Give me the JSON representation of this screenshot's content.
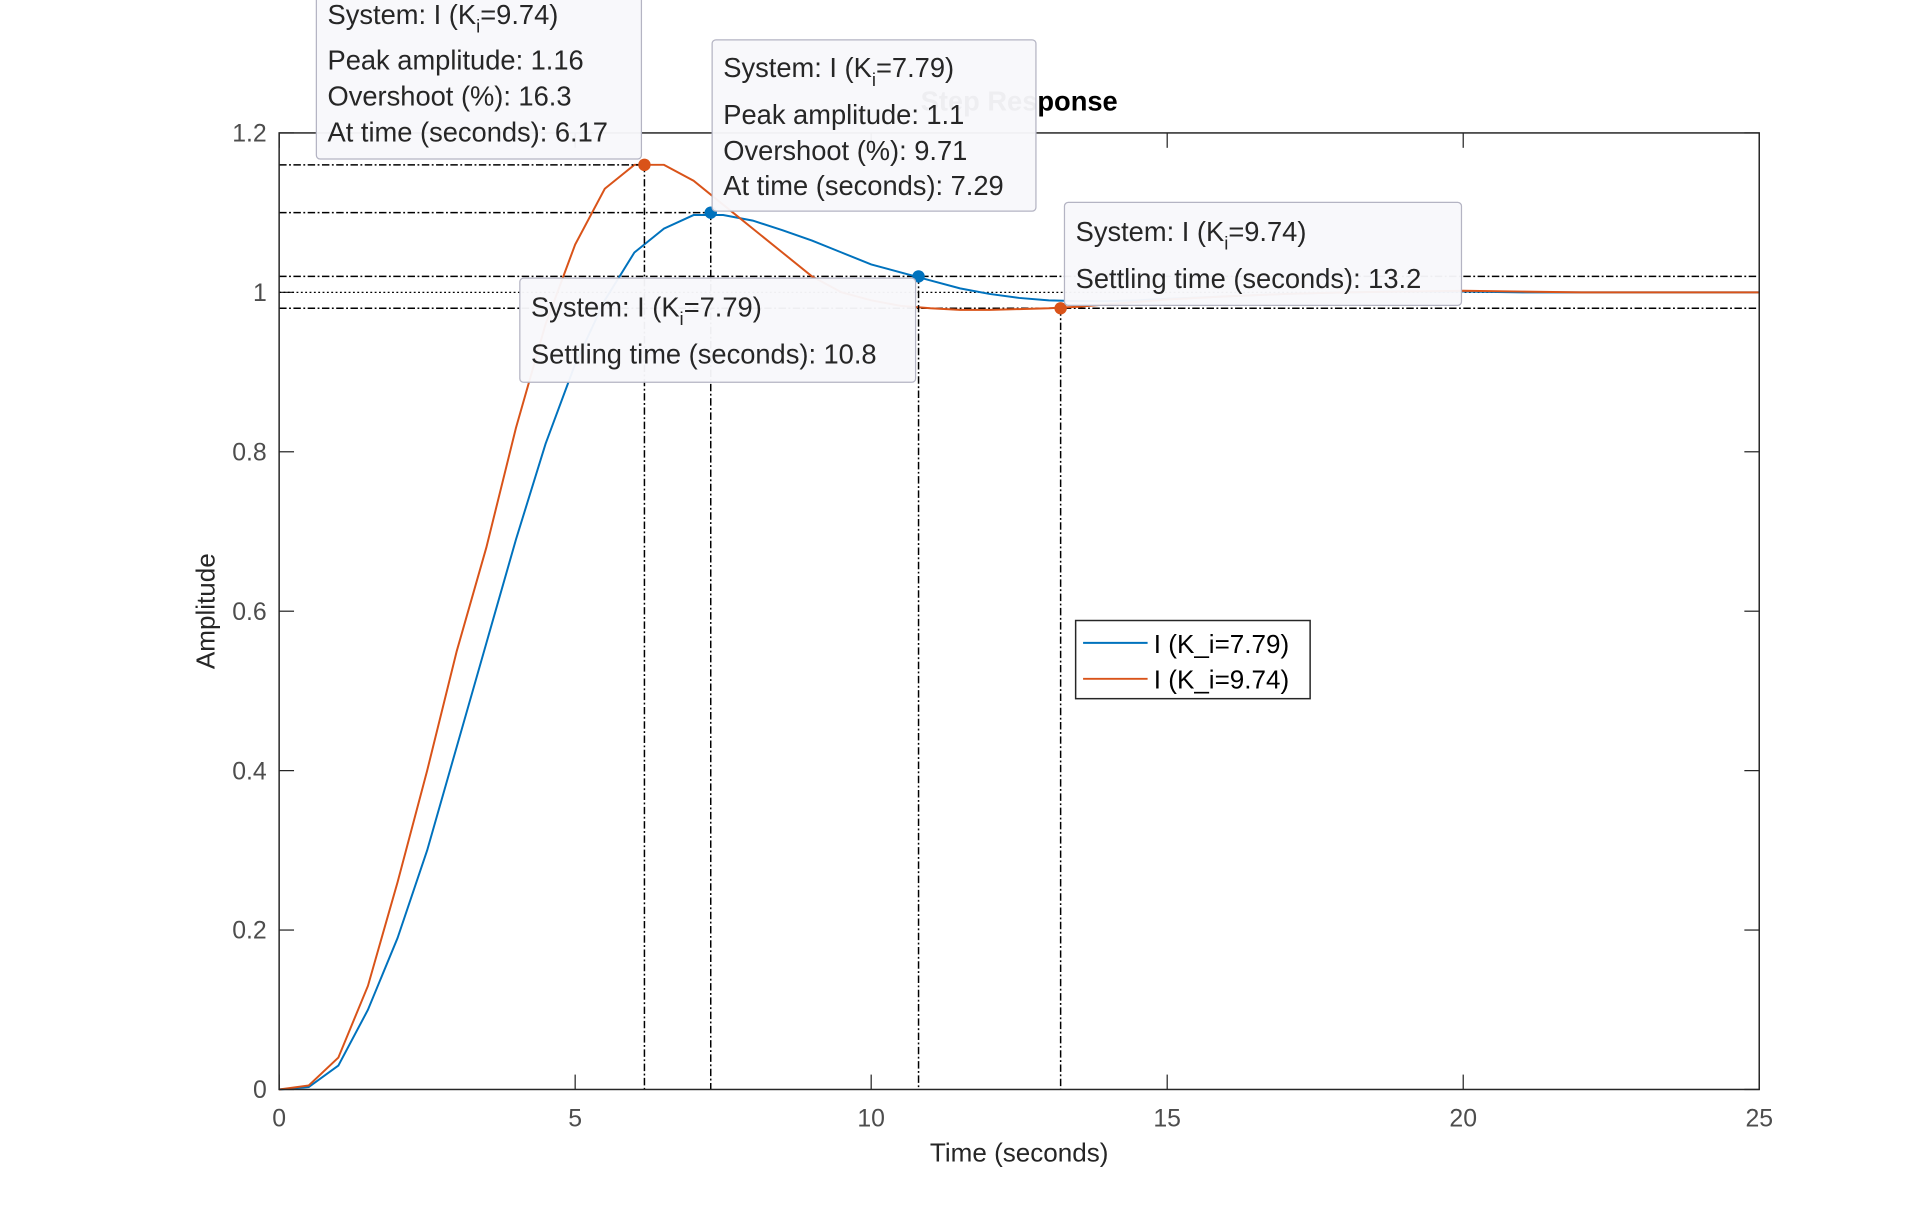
{
  "chart_data": {
    "type": "line",
    "title": "Step Response",
    "xlabel": "Time (seconds)",
    "ylabel": "Amplitude",
    "xlim": [
      0,
      25
    ],
    "ylim": [
      0,
      1.2
    ],
    "xticks": [
      0,
      5,
      10,
      15,
      20,
      25
    ],
    "yticks": [
      0,
      0.2,
      0.4,
      0.6,
      0.8,
      1,
      1.2
    ],
    "grid": false,
    "x": [
      0,
      0.5,
      1,
      1.5,
      2,
      2.5,
      3,
      3.5,
      4,
      4.5,
      5,
      5.5,
      6,
      6.5,
      7,
      7.5,
      8,
      8.5,
      9,
      9.5,
      10,
      10.5,
      11,
      11.5,
      12,
      12.5,
      13,
      13.5,
      14,
      14.5,
      15,
      16,
      17,
      18,
      19,
      20,
      21,
      22,
      23,
      24,
      25
    ],
    "series": [
      {
        "name": "I (K_i=7.79)",
        "color": "#0072bd",
        "values": [
          0,
          0.003,
          0.03,
          0.1,
          0.19,
          0.3,
          0.43,
          0.56,
          0.69,
          0.81,
          0.91,
          0.99,
          1.05,
          1.08,
          1.097,
          1.097,
          1.09,
          1.078,
          1.065,
          1.05,
          1.035,
          1.025,
          1.015,
          1.005,
          0.998,
          0.993,
          0.99,
          0.989,
          0.989,
          0.99,
          0.992,
          0.995,
          0.998,
          1.0,
          1.001,
          1.001,
          1.0,
          1.0,
          1.0,
          1.0,
          1.0
        ]
      },
      {
        "name": "I (K_i=9.74)",
        "color": "#d95319",
        "values": [
          0,
          0.005,
          0.04,
          0.13,
          0.26,
          0.4,
          0.55,
          0.68,
          0.83,
          0.96,
          1.06,
          1.13,
          1.16,
          1.16,
          1.14,
          1.11,
          1.08,
          1.05,
          1.02,
          1.0,
          0.99,
          0.983,
          0.98,
          0.978,
          0.978,
          0.979,
          0.98,
          0.982,
          0.985,
          0.988,
          0.991,
          0.995,
          0.998,
          1.0,
          1.001,
          1.002,
          1.001,
          1.0,
          1.0,
          1.0,
          1.0
        ]
      }
    ],
    "steady_state": 1,
    "settling_band": [
      0.98,
      1.02
    ],
    "datatips": [
      {
        "color": "#d95319",
        "system": {
          "prefix": "System: I (K",
          "sub": "i",
          "suffix": "=9.74)"
        },
        "rows": [
          {
            "label": "Peak amplitude:",
            "value": 1.16
          },
          {
            "label": "Overshoot (%):",
            "value": 16.3
          },
          {
            "label": "At time (seconds):",
            "value": 6.17
          }
        ]
      },
      {
        "color": "#0072bd",
        "system": {
          "prefix": "System: I (K",
          "sub": "i",
          "suffix": "=7.79)"
        },
        "rows": [
          {
            "label": "Peak amplitude:",
            "value": 1.1
          },
          {
            "label": "Overshoot (%):",
            "value": 9.71
          },
          {
            "label": "At time (seconds):",
            "value": 7.29
          }
        ]
      },
      {
        "color": "#d95319",
        "system": {
          "prefix": "System: I (K",
          "sub": "i",
          "suffix": "=9.74)"
        },
        "rows": [
          {
            "label": "Settling time (seconds):",
            "value": 13.2
          }
        ],
        "y": 0.98
      },
      {
        "color": "#0072bd",
        "system": {
          "prefix": "System: I (K",
          "sub": "i",
          "suffix": "=7.79)"
        },
        "rows": [
          {
            "label": "Settling time (seconds):",
            "value": 10.8
          }
        ],
        "y": 1.02
      }
    ]
  }
}
